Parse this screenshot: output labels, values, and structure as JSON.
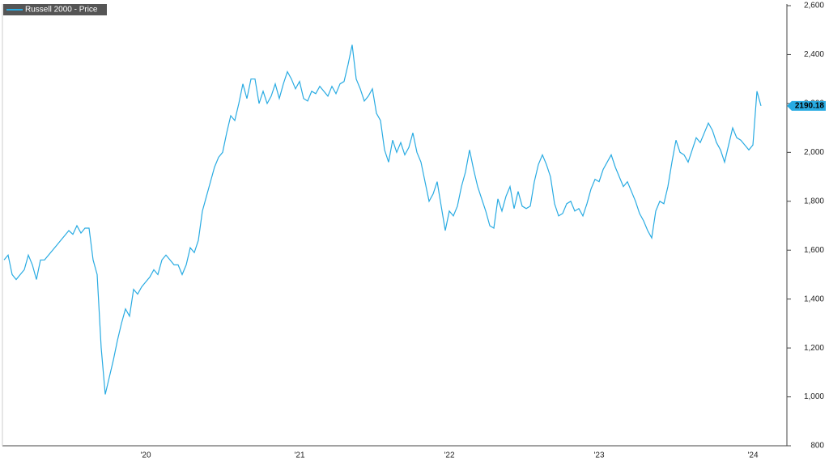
{
  "chart_data": {
    "type": "line",
    "categories": [
      null,
      null,
      null,
      null,
      null,
      null,
      null,
      null,
      null,
      null,
      null,
      null,
      null,
      null,
      null,
      null,
      null,
      null,
      null,
      null,
      null,
      null,
      null,
      null,
      null,
      null,
      null,
      null,
      null,
      null,
      null,
      null,
      null,
      null,
      null,
      "'20",
      null,
      null,
      null,
      null,
      null,
      null,
      null,
      null,
      null,
      null,
      null,
      null,
      null,
      null,
      null,
      null,
      null,
      null,
      null,
      null,
      null,
      null,
      null,
      null,
      null,
      null,
      null,
      null,
      null,
      null,
      null,
      null,
      null,
      null,
      null,
      null,
      null,
      "'21",
      null,
      null,
      null,
      null,
      null,
      null,
      null,
      null,
      null,
      null,
      null,
      null,
      null,
      null,
      null,
      null,
      null,
      null,
      null,
      null,
      null,
      null,
      null,
      null,
      null,
      null,
      null,
      null,
      null,
      null,
      null,
      null,
      null,
      null,
      null,
      null,
      "'22",
      null,
      null,
      null,
      null,
      null,
      null,
      null,
      null,
      null,
      null,
      null,
      null,
      null,
      null,
      null,
      null,
      null,
      null,
      null,
      null,
      null,
      null,
      null,
      null,
      null,
      null,
      null,
      null,
      null,
      null,
      null,
      null,
      null,
      null,
      null,
      null,
      "'23",
      null,
      null,
      null,
      null,
      null,
      null,
      null,
      null,
      null,
      null,
      null,
      null,
      null,
      null,
      null,
      null,
      null,
      null,
      null,
      null,
      null,
      null,
      null,
      null,
      null,
      null,
      null,
      null,
      null,
      null,
      null,
      null,
      null,
      null,
      null,
      null,
      null,
      "'24",
      null,
      null
    ],
    "series": [
      {
        "name": "Russell 2000 - Price",
        "color": "#29abe2",
        "values": [
          1560,
          1580,
          1500,
          1480,
          1500,
          1520,
          1580,
          1540,
          1480,
          1560,
          1560,
          1580,
          1600,
          1620,
          1640,
          1660,
          1680,
          1665,
          1700,
          1670,
          1690,
          1690,
          1560,
          1500,
          1200,
          1010,
          1080,
          1150,
          1230,
          1300,
          1360,
          1330,
          1440,
          1420,
          1450,
          1470,
          1490,
          1520,
          1500,
          1560,
          1580,
          1560,
          1540,
          1540,
          1500,
          1540,
          1610,
          1590,
          1640,
          1760,
          1820,
          1880,
          1940,
          1980,
          2000,
          2080,
          2150,
          2130,
          2200,
          2280,
          2220,
          2300,
          2300,
          2200,
          2250,
          2200,
          2230,
          2280,
          2220,
          2280,
          2330,
          2300,
          2260,
          2290,
          2220,
          2210,
          2250,
          2240,
          2270,
          2250,
          2230,
          2270,
          2240,
          2280,
          2290,
          2360,
          2440,
          2300,
          2260,
          2210,
          2230,
          2260,
          2160,
          2130,
          2010,
          1960,
          2050,
          2000,
          2040,
          1990,
          2020,
          2080,
          2000,
          1960,
          1880,
          1800,
          1830,
          1880,
          1780,
          1680,
          1760,
          1740,
          1780,
          1860,
          1920,
          2010,
          1930,
          1860,
          1810,
          1760,
          1700,
          1690,
          1810,
          1760,
          1820,
          1860,
          1770,
          1840,
          1780,
          1770,
          1780,
          1880,
          1950,
          1990,
          1950,
          1900,
          1790,
          1740,
          1750,
          1790,
          1800,
          1760,
          1770,
          1740,
          1790,
          1850,
          1890,
          1880,
          1930,
          1960,
          1990,
          1940,
          1900,
          1860,
          1880,
          1840,
          1800,
          1750,
          1720,
          1680,
          1650,
          1760,
          1800,
          1790,
          1860,
          1960,
          2050,
          2000,
          1990,
          1960,
          2010,
          2060,
          2040,
          2080,
          2120,
          2090,
          2040,
          2010,
          1960,
          2030,
          2100,
          2060,
          2050,
          2030,
          2010,
          2030,
          2250,
          2190.18
        ]
      }
    ],
    "ylim": [
      800,
      2600
    ],
    "yticks": [
      800,
      {
        "value": 1000,
        "label": "1,000"
      },
      {
        "value": 1200,
        "label": "1,200"
      },
      {
        "value": 1400,
        "label": "1,400"
      },
      {
        "value": 1600,
        "label": "1,600"
      },
      {
        "value": 1800,
        "label": "1,800"
      },
      {
        "value": 2000,
        "label": "2,000"
      },
      {
        "value": 2200,
        "label": "2,200"
      },
      {
        "value": 2400,
        "label": "2,400"
      },
      {
        "value": 2600,
        "label": "2,600"
      }
    ],
    "grid": false
  }
}
